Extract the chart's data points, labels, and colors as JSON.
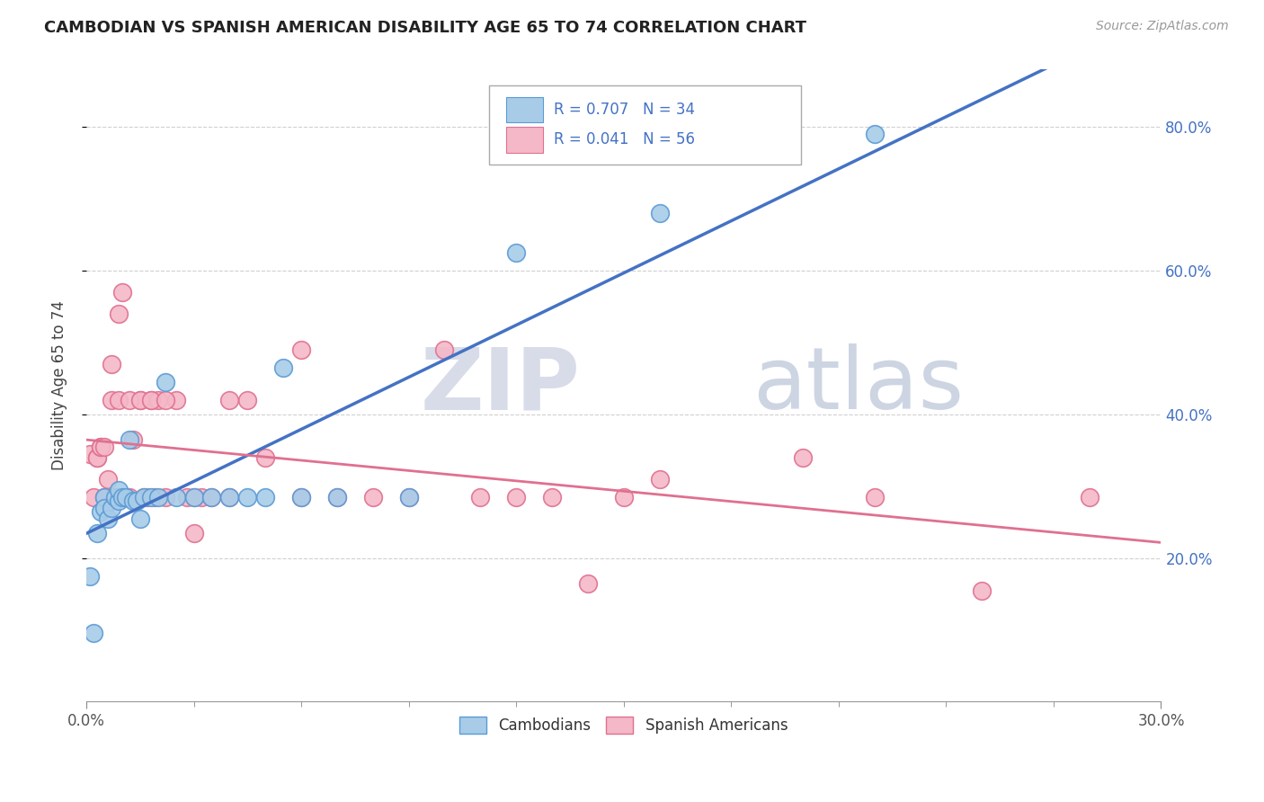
{
  "title": "CAMBODIAN VS SPANISH AMERICAN DISABILITY AGE 65 TO 74 CORRELATION CHART",
  "source": "Source: ZipAtlas.com",
  "ylabel": "Disability Age 65 to 74",
  "legend_label_cambodian": "Cambodians",
  "legend_label_spanish": "Spanish Americans",
  "watermark_zip": "ZIP",
  "watermark_atlas": "atlas",
  "cambodian_color": "#a8cce8",
  "cambodian_edge_color": "#5b9bd5",
  "spanish_color": "#f4b8c8",
  "spanish_edge_color": "#e07090",
  "cambodian_line_color": "#4472c4",
  "spanish_line_color": "#e07090",
  "background_color": "#ffffff",
  "grid_color": "#d0d0d0",
  "right_tick_color": "#4472c4",
  "xlim": [
    0.0,
    0.3
  ],
  "ylim": [
    0.0,
    0.88
  ],
  "xtick_major": [
    0.0,
    0.3
  ],
  "xtick_minor_count": 9,
  "ytick_right": [
    0.2,
    0.4,
    0.6,
    0.8
  ],
  "ytick_right_labels": [
    "20.0%",
    "40.0%",
    "60.0%",
    "80.0%"
  ],
  "stats_box": {
    "cambodian_r": "R = 0.707",
    "cambodian_n": "N = 34",
    "spanish_r": "R = 0.041",
    "spanish_n": "N = 56"
  },
  "cambodian_x": [
    0.001,
    0.002,
    0.003,
    0.004,
    0.005,
    0.005,
    0.006,
    0.007,
    0.008,
    0.009,
    0.009,
    0.01,
    0.011,
    0.012,
    0.013,
    0.014,
    0.015,
    0.016,
    0.018,
    0.02,
    0.022,
    0.025,
    0.03,
    0.035,
    0.04,
    0.045,
    0.05,
    0.055,
    0.06,
    0.07,
    0.09,
    0.12,
    0.16,
    0.22
  ],
  "cambodian_y": [
    0.175,
    0.095,
    0.235,
    0.265,
    0.285,
    0.27,
    0.255,
    0.27,
    0.285,
    0.28,
    0.295,
    0.285,
    0.285,
    0.365,
    0.28,
    0.28,
    0.255,
    0.285,
    0.285,
    0.285,
    0.445,
    0.285,
    0.285,
    0.285,
    0.285,
    0.285,
    0.285,
    0.465,
    0.285,
    0.285,
    0.285,
    0.625,
    0.68,
    0.79
  ],
  "spanish_x": [
    0.001,
    0.002,
    0.003,
    0.003,
    0.004,
    0.004,
    0.005,
    0.005,
    0.006,
    0.007,
    0.008,
    0.009,
    0.01,
    0.011,
    0.012,
    0.013,
    0.015,
    0.016,
    0.017,
    0.018,
    0.019,
    0.02,
    0.022,
    0.025,
    0.028,
    0.03,
    0.032,
    0.035,
    0.04,
    0.045,
    0.05,
    0.06,
    0.07,
    0.08,
    0.09,
    0.1,
    0.11,
    0.12,
    0.13,
    0.14,
    0.15,
    0.16,
    0.2,
    0.22,
    0.25,
    0.28,
    0.005,
    0.007,
    0.009,
    0.012,
    0.015,
    0.018,
    0.022,
    0.03,
    0.04,
    0.06
  ],
  "spanish_y": [
    0.345,
    0.285,
    0.34,
    0.34,
    0.355,
    0.355,
    0.285,
    0.285,
    0.31,
    0.47,
    0.285,
    0.54,
    0.57,
    0.285,
    0.285,
    0.365,
    0.42,
    0.285,
    0.285,
    0.42,
    0.285,
    0.42,
    0.285,
    0.42,
    0.285,
    0.235,
    0.285,
    0.285,
    0.285,
    0.42,
    0.34,
    0.285,
    0.285,
    0.285,
    0.285,
    0.49,
    0.285,
    0.285,
    0.285,
    0.165,
    0.285,
    0.31,
    0.34,
    0.285,
    0.155,
    0.285,
    0.355,
    0.42,
    0.42,
    0.42,
    0.42,
    0.42,
    0.42,
    0.285,
    0.42,
    0.49
  ]
}
